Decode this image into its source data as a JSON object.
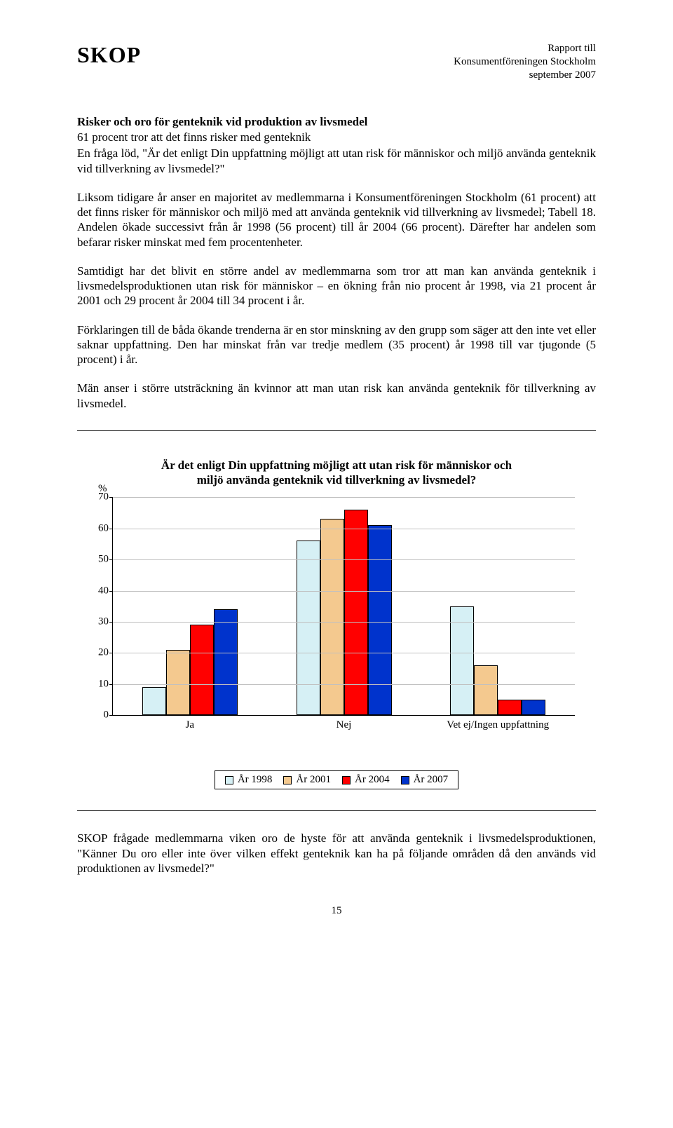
{
  "header": {
    "logo": "SKOP",
    "report_to": "Rapport till",
    "org": "Konsumentföreningen Stockholm",
    "date": "september 2007"
  },
  "heading": "Risker och oro för genteknik vid produktion av livsmedel",
  "subheading": "61 procent tror att det finns risker med genteknik",
  "intro": "En fråga löd, \"Är det enligt Din uppfattning möjligt att utan risk för människor och miljö använda genteknik vid tillverkning av livsmedel?\"",
  "p1": "Liksom tidigare år anser en majoritet av medlemmarna i Konsumentföreningen Stockholm (61 procent) att det finns risker för människor och miljö med att använda genteknik vid tillverkning av livsmedel; Tabell 18. Andelen ökade successivt från år 1998 (56 procent) till år 2004 (66 procent). Därefter har andelen som befarar risker minskat med fem procentenheter.",
  "p2": "Samtidigt har det blivit en större andel av medlemmarna som tror att man kan använda genteknik i livsmedelsproduktionen utan risk för människor – en ökning från nio procent år 1998, via 21 procent år 2001 och 29 procent år 2004 till 34 procent i år.",
  "p3": "Förklaringen till de båda ökande trenderna är en stor minskning av den grupp som säger att den inte vet eller saknar uppfattning. Den har minskat från var tredje medlem (35 procent) år 1998 till var tjugonde (5 procent) i år.",
  "p4": "Män anser i större utsträckning än kvinnor att man utan risk kan använda genteknik för tillverkning av livsmedel.",
  "chart": {
    "title_line1": "Är det enligt Din uppfattning möjligt att utan risk för människor och",
    "title_line2": "miljö använda genteknik vid tillverkning av livsmedel?",
    "y_label": "%",
    "y_max": 70,
    "y_ticks": [
      0,
      10,
      20,
      30,
      40,
      50,
      60,
      70
    ],
    "categories": [
      "Ja",
      "Nej",
      "Vet ej/Ingen uppfattning"
    ],
    "series": [
      {
        "label": "År 1998",
        "color": "#d6f0f5",
        "values": [
          9,
          56,
          35
        ]
      },
      {
        "label": "År 2001",
        "color": "#f4c98f",
        "values": [
          21,
          63,
          16
        ]
      },
      {
        "label": "År 2004",
        "color": "#ff0000",
        "values": [
          29,
          66,
          5
        ]
      },
      {
        "label": "År 2007",
        "color": "#0033cc",
        "values": [
          34,
          61,
          5
        ]
      }
    ],
    "gridline_color": "#c0c0c0",
    "tick_fontsize": 15
  },
  "footer_para": "SKOP frågade medlemmarna viken oro de hyste för att använda genteknik i livsmedelsproduktionen, \"Känner Du oro eller inte över vilken effekt genteknik kan ha på följande områden då den används vid produktionen av livsmedel?\"",
  "page_number": "15"
}
